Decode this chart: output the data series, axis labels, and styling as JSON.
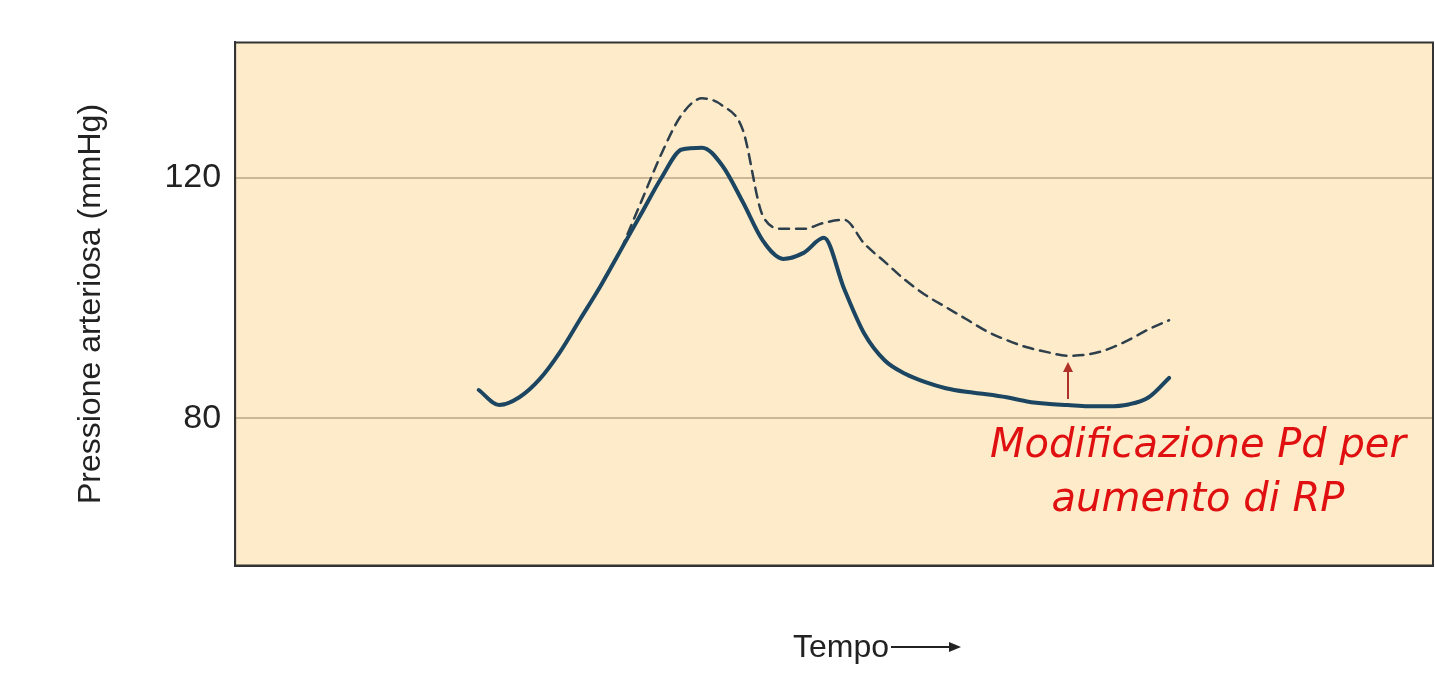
{
  "chart_data": {
    "type": "line",
    "ylabel": "Pressione arteriosa (mmHg)",
    "xlabel": "Tempo",
    "categories": [
      null,
      null,
      null,
      null,
      null,
      null,
      null,
      null,
      null,
      null,
      null,
      null,
      null,
      null,
      null,
      null,
      null,
      null,
      null,
      null,
      null,
      null,
      null,
      null,
      null,
      null,
      null,
      null,
      null,
      null,
      null,
      null,
      null,
      null,
      null,
      null,
      null,
      null,
      null,
      null,
      null,
      null,
      null,
      null,
      null,
      null,
      null,
      null,
      null,
      null,
      null,
      null,
      null,
      null,
      null,
      null,
      null,
      null,
      null,
      null
    ],
    "series": [
      {
        "color": "#1b4560",
        "line_style": "solid",
        "values": [
          null,
          null,
          null,
          null,
          null,
          null,
          null,
          null,
          null,
          null,
          null,
          null,
          84.7,
          82.2,
          83.5,
          86.5,
          91,
          96.5,
          102,
          108,
          114,
          120,
          124.7,
          125,
          122,
          116,
          109.5,
          106.5,
          107.5,
          110,
          101.5,
          94,
          89.6,
          87.4,
          86,
          85,
          84.4,
          84,
          83.5,
          82.8,
          82.4,
          82.2,
          82,
          82,
          82.3,
          83.5,
          86.7,
          null,
          null,
          null,
          null,
          null,
          null,
          null,
          null,
          null,
          null,
          null,
          null,
          null
        ]
      },
      {
        "color": "#2e3f4c",
        "line_style": "dashed",
        "values": [
          null,
          null,
          null,
          null,
          null,
          null,
          null,
          null,
          null,
          null,
          null,
          null,
          null,
          null,
          null,
          null,
          null,
          null,
          null,
          108,
          116,
          124,
          130.5,
          133.2,
          132,
          128,
          113.6,
          111.5,
          111.5,
          112.5,
          113,
          109,
          106,
          103,
          100.5,
          98.5,
          96.5,
          94.5,
          93,
          91.8,
          91,
          90.4,
          90.6,
          91.5,
          93,
          94.8,
          96.3,
          null,
          null,
          null,
          null,
          null,
          null,
          null,
          null,
          null,
          null,
          null,
          null,
          null
        ]
      }
    ],
    "ylim": [
      55.5,
      142.5
    ],
    "yticks": [
      80,
      120
    ],
    "grid": "y",
    "tick_labels": "y",
    "marker": "none",
    "annotations": [
      "Modificazione Pd per aumento di RP"
    ]
  }
}
